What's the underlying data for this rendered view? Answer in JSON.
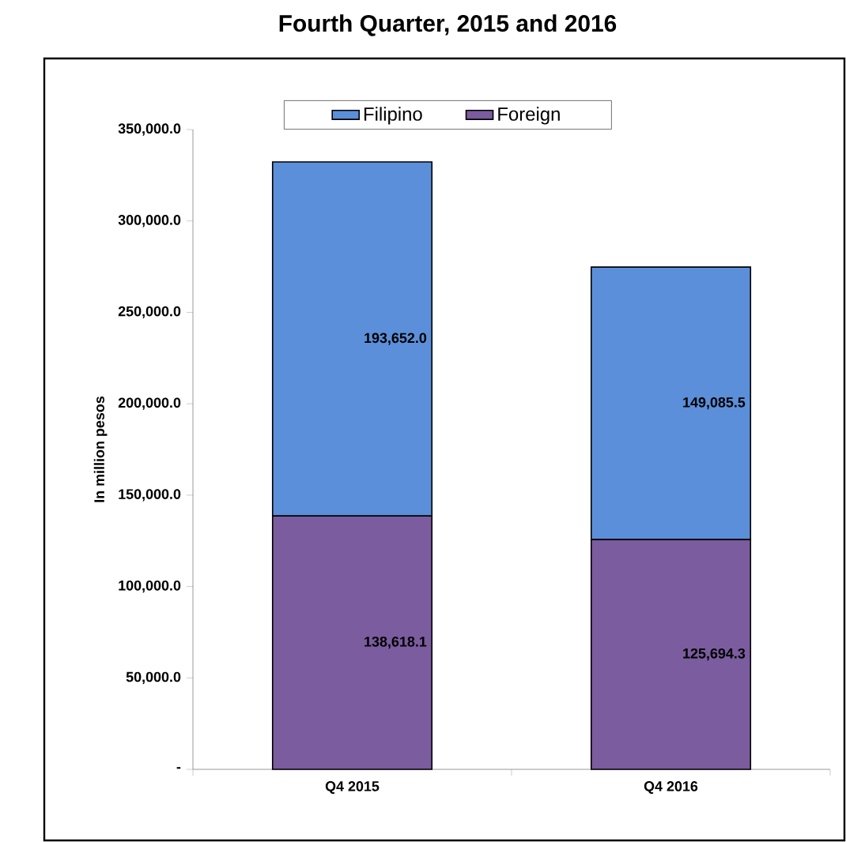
{
  "chart_data": {
    "type": "bar",
    "title": "Fourth Quarter, 2015 and 2016",
    "ylabel": "In million pesos",
    "categories": [
      "Q4 2015",
      "Q4 2016"
    ],
    "stacked": true,
    "legend": "top",
    "series": [
      {
        "name": "Foreign",
        "color": "#7b5c9e",
        "values": [
          138618.1,
          125694.3
        ],
        "value_labels": [
          "138,618.1",
          "125,694.3"
        ]
      },
      {
        "name": "Filipino",
        "color": "#5b8fd9",
        "values": [
          193652.0,
          149085.5
        ],
        "value_labels": [
          "193,652.0",
          "149,085.5"
        ]
      }
    ],
    "ylim": [
      0,
      350000
    ],
    "yticks": [
      {
        "value": 0,
        "label": "-"
      },
      {
        "value": 50000,
        "label": "50,000.0"
      },
      {
        "value": 100000,
        "label": "100,000.0"
      },
      {
        "value": 150000,
        "label": "150,000.0"
      },
      {
        "value": 200000,
        "label": "200,000.0"
      },
      {
        "value": 250000,
        "label": "250,000.0"
      },
      {
        "value": 300000,
        "label": "300,000.0"
      },
      {
        "value": 350000,
        "label": "350,000.0"
      }
    ]
  }
}
